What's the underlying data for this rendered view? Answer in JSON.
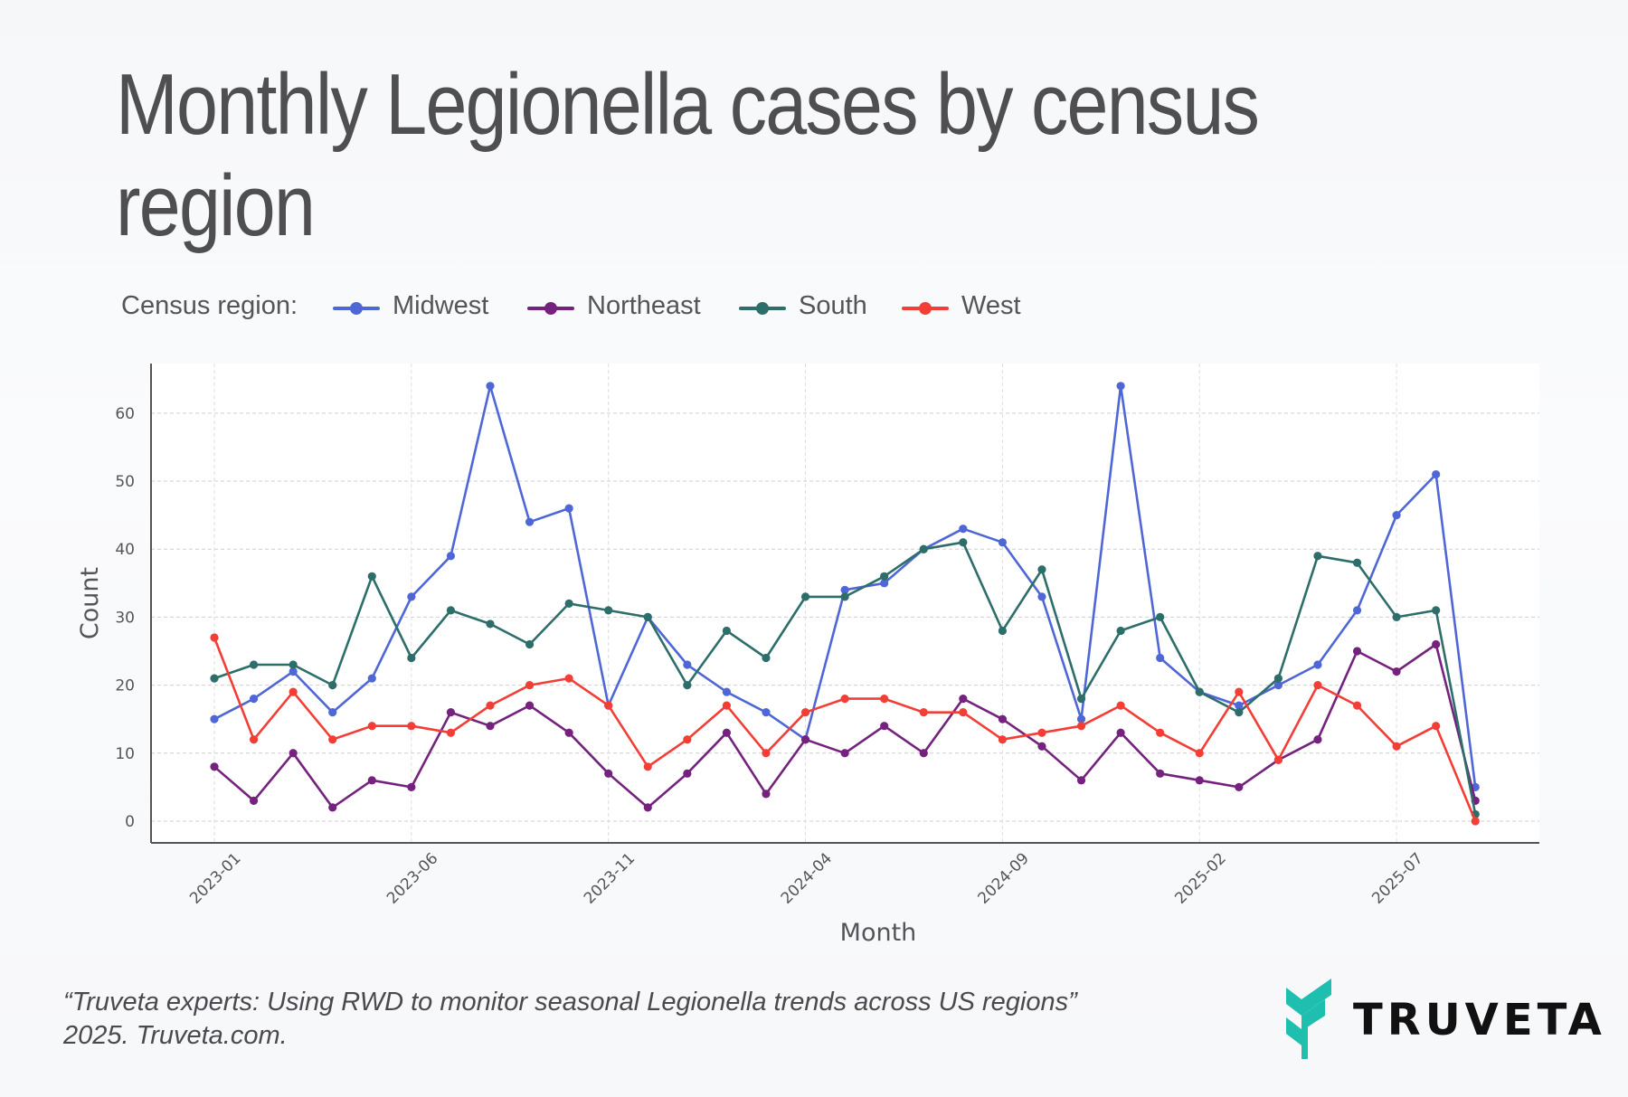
{
  "title": "Monthly Legionella cases by census region",
  "legend": {
    "label": "Census region:",
    "items": [
      {
        "name": "Midwest",
        "color": "#4f67d6"
      },
      {
        "name": "Northeast",
        "color": "#74227d"
      },
      {
        "name": "South",
        "color": "#2d6e6a"
      },
      {
        "name": "West",
        "color": "#f23e36"
      }
    ]
  },
  "footer": {
    "line1": "“Truveta experts: Using RWD to monitor seasonal Legionella trends across US regions”",
    "line2": "2025. Truveta.com."
  },
  "brand": {
    "name": "TRUVETA",
    "logo_icon": "truveta-leaf-icon",
    "color": "#1fbfb0"
  },
  "chart_data": {
    "type": "line",
    "title": "Monthly Legionella cases by census region",
    "xlabel": "Month",
    "ylabel": "Count",
    "ylim": [
      -3.2,
      67.3
    ],
    "yticks": [
      0,
      10,
      20,
      30,
      40,
      50,
      60
    ],
    "xticks": [
      "2023-01",
      "2023-06",
      "2023-11",
      "2024-04",
      "2024-09",
      "2025-02",
      "2025-07"
    ],
    "grid": true,
    "legend_position": "top-left",
    "x": [
      "2023-01",
      "2023-02",
      "2023-03",
      "2023-04",
      "2023-05",
      "2023-06",
      "2023-07",
      "2023-08",
      "2023-09",
      "2023-10",
      "2023-11",
      "2023-12",
      "2024-01",
      "2024-02",
      "2024-03",
      "2024-04",
      "2024-05",
      "2024-06",
      "2024-07",
      "2024-08",
      "2024-09",
      "2024-10",
      "2024-11",
      "2024-12",
      "2025-01",
      "2025-02",
      "2025-03",
      "2025-04",
      "2025-05",
      "2025-06",
      "2025-07",
      "2025-08",
      "2025-09"
    ],
    "series": [
      {
        "name": "Midwest",
        "color": "#4f67d6",
        "values": [
          15,
          18,
          22,
          16,
          21,
          33,
          39,
          64,
          44,
          46,
          17,
          30,
          23,
          19,
          16,
          12,
          34,
          35,
          40,
          43,
          41,
          33,
          15,
          64,
          24,
          19,
          17,
          20,
          23,
          31,
          45,
          51,
          5
        ]
      },
      {
        "name": "Northeast",
        "color": "#74227d",
        "values": [
          8,
          3,
          10,
          2,
          6,
          5,
          16,
          14,
          17,
          13,
          7,
          2,
          7,
          13,
          4,
          12,
          10,
          14,
          10,
          18,
          15,
          11,
          6,
          13,
          7,
          6,
          5,
          9,
          12,
          25,
          22,
          26,
          3
        ]
      },
      {
        "name": "South",
        "color": "#2d6e6a",
        "values": [
          21,
          23,
          23,
          20,
          36,
          24,
          31,
          29,
          26,
          32,
          31,
          30,
          20,
          28,
          24,
          33,
          33,
          36,
          40,
          41,
          28,
          37,
          18,
          28,
          30,
          19,
          16,
          21,
          39,
          38,
          30,
          31,
          1
        ]
      },
      {
        "name": "West",
        "color": "#f23e36",
        "values": [
          27,
          12,
          19,
          12,
          14,
          14,
          13,
          17,
          20,
          21,
          17,
          8,
          12,
          17,
          10,
          16,
          18,
          18,
          16,
          16,
          12,
          13,
          14,
          17,
          13,
          10,
          19,
          9,
          20,
          17,
          11,
          14,
          0
        ]
      }
    ]
  }
}
